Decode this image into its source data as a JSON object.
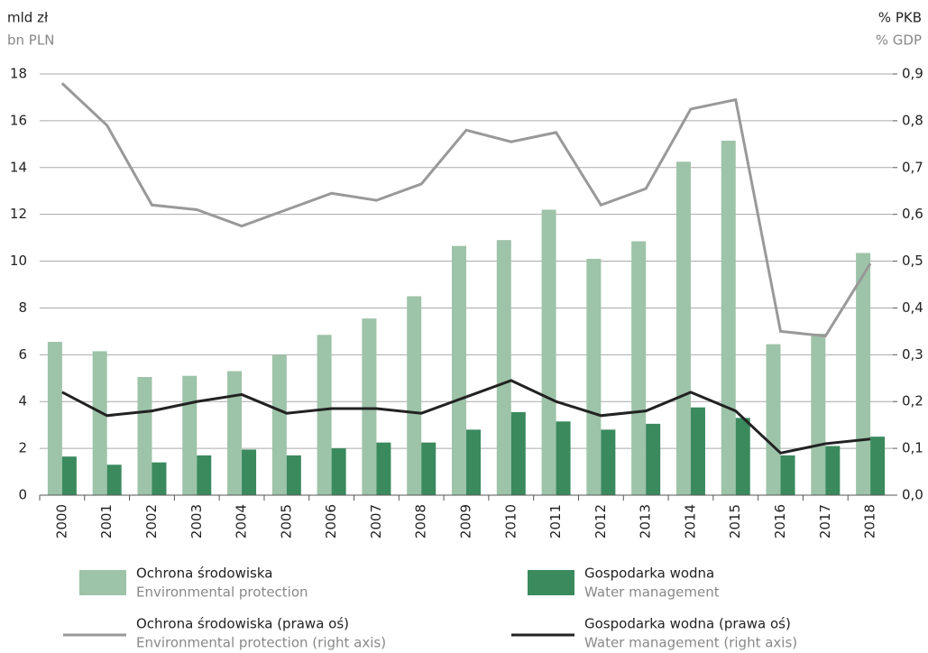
{
  "chart_data": {
    "type": "bar",
    "y_label": "mld zł",
    "y_label_en": "bn PLN",
    "y2_label": "% PKB",
    "y2_label_en": "% GDP",
    "categories": [
      "2000",
      "2001",
      "2002",
      "2003",
      "2004",
      "2005",
      "2006",
      "2007",
      "2008",
      "2009",
      "2010",
      "2011",
      "2012",
      "2013",
      "2014",
      "2015",
      "2016",
      "2017",
      "2018"
    ],
    "series": [
      {
        "name": "Ochrona środowiska",
        "name_en": "Environmental protection",
        "type": "bar",
        "color": "#9dc3a8",
        "values": [
          6.55,
          6.15,
          5.05,
          5.1,
          5.3,
          6.0,
          6.85,
          7.55,
          8.5,
          10.65,
          10.9,
          12.2,
          10.1,
          10.85,
          14.25,
          15.15,
          6.45,
          6.9,
          10.35
        ]
      },
      {
        "name": "Gospodarka wodna",
        "name_en": "Water management",
        "type": "bar",
        "color": "#3a8a5e",
        "values": [
          1.65,
          1.3,
          1.4,
          1.7,
          1.95,
          1.7,
          2.0,
          2.25,
          2.25,
          2.8,
          3.55,
          3.15,
          2.8,
          3.05,
          3.75,
          3.3,
          1.7,
          2.1,
          2.5
        ]
      },
      {
        "name": "Ochrona środowiska (prawa oś)",
        "name_en": "Environmental protection (right axis)",
        "type": "line",
        "axis": "y2",
        "color": "#999999",
        "values": [
          0.88,
          0.79,
          0.62,
          0.61,
          0.575,
          0.61,
          0.645,
          0.63,
          0.665,
          0.78,
          0.755,
          0.775,
          0.62,
          0.655,
          0.825,
          0.845,
          0.35,
          0.34,
          0.495
        ]
      },
      {
        "name": "Gospodarka wodna (prawa oś)",
        "name_en": "Water management (right axis)",
        "type": "line",
        "axis": "y2",
        "color": "#222222",
        "values": [
          0.22,
          0.17,
          0.18,
          0.2,
          0.215,
          0.175,
          0.185,
          0.185,
          0.175,
          0.21,
          0.245,
          0.2,
          0.17,
          0.18,
          0.22,
          0.18,
          0.09,
          0.11,
          0.12
        ]
      }
    ],
    "ylim": [
      0,
      18
    ],
    "yticks": [
      0,
      2,
      4,
      6,
      8,
      10,
      12,
      14,
      16,
      18
    ],
    "y2lim": [
      0,
      0.9
    ],
    "y2ticks": [
      {
        "value": 0,
        "label": "0,0"
      },
      {
        "value": 0.1,
        "label": "0,1"
      },
      {
        "value": 0.2,
        "label": "0,2"
      },
      {
        "value": 0.3,
        "label": "0,3"
      },
      {
        "value": 0.4,
        "label": "0,4"
      },
      {
        "value": 0.5,
        "label": "0,5"
      },
      {
        "value": 0.6,
        "label": "0,6"
      },
      {
        "value": 0.7,
        "label": "0,7"
      },
      {
        "value": 0.8,
        "label": "0,8"
      },
      {
        "value": 0.9,
        "label": "0,9"
      }
    ],
    "grid": true
  }
}
